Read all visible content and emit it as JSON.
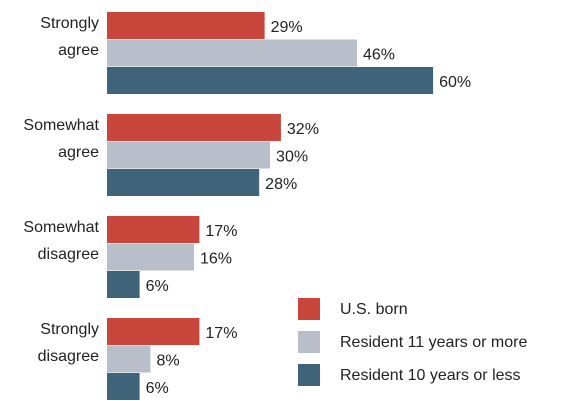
{
  "chart_data": {
    "type": "bar",
    "orientation": "horizontal",
    "categories": [
      [
        "Strongly",
        "agree"
      ],
      [
        "Somewhat",
        "agree"
      ],
      [
        "Somewhat",
        "disagree"
      ],
      [
        "Strongly",
        "disagree"
      ]
    ],
    "series": [
      {
        "name": "U.S. born",
        "color": "#c9463d",
        "values": [
          29,
          32,
          17,
          17
        ],
        "value_labels": [
          "29%",
          "32%",
          "17%",
          "17%"
        ]
      },
      {
        "name": "Resident 11 years or more",
        "color": "#b8bfca",
        "values": [
          46,
          30,
          16,
          8
        ],
        "value_labels": [
          "46%",
          "30%",
          "16%",
          "8%"
        ]
      },
      {
        "name": "Resident 10 years or less",
        "color": "#3f6379",
        "values": [
          60,
          28,
          6,
          6
        ],
        "value_labels": [
          "60%",
          "28%",
          "6%",
          "6%"
        ]
      }
    ],
    "legend": "bottom-right"
  }
}
